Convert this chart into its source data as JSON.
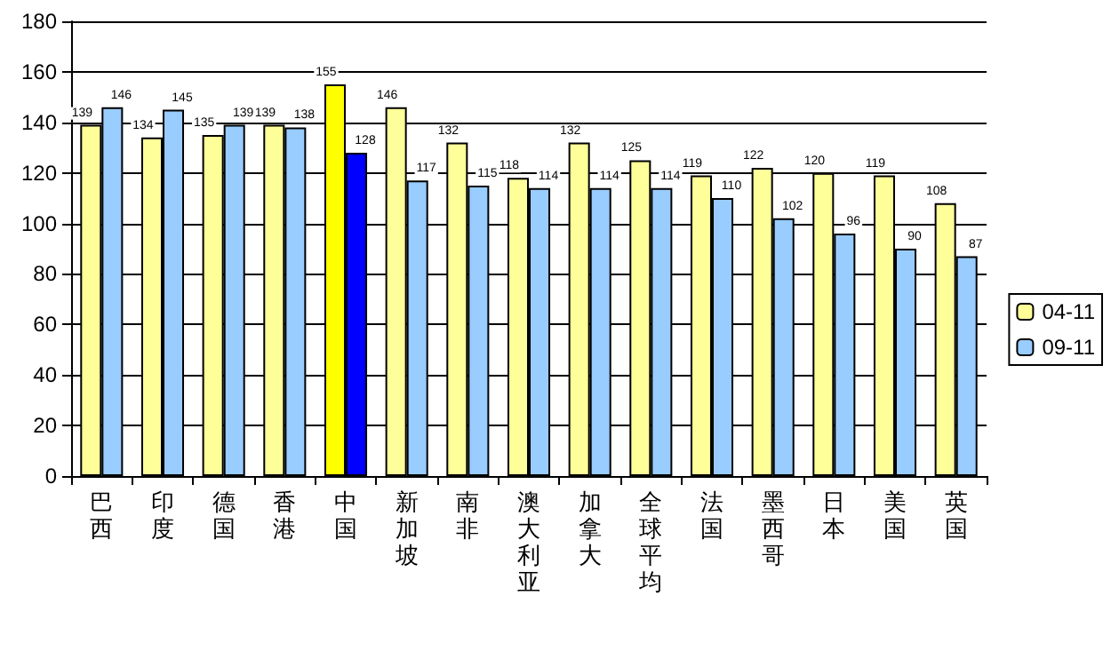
{
  "chart_data": {
    "type": "bar",
    "categories": [
      "巴西",
      "印度",
      "德国",
      "香港",
      "中国",
      "新加坡",
      "南非",
      "澳大利亚",
      "加拿大",
      "全球平均",
      "法国",
      "墨西哥",
      "日本",
      "美国",
      "英国"
    ],
    "series": [
      {
        "name": "04-11",
        "color": "#ffff99",
        "colors": [
          "#ffff99",
          "#ffff99",
          "#ffff99",
          "#ffff99",
          "#ffff00",
          "#ffff99",
          "#ffff99",
          "#ffff99",
          "#ffff99",
          "#ffff99",
          "#ffff99",
          "#ffff99",
          "#ffff99",
          "#ffff99",
          "#ffff99"
        ],
        "values": [
          139,
          134,
          135,
          139,
          155,
          146,
          132,
          118,
          132,
          125,
          119,
          122,
          120,
          119,
          108
        ]
      },
      {
        "name": "09-11",
        "color": "#99ccff",
        "colors": [
          "#99ccff",
          "#99ccff",
          "#99ccff",
          "#99ccff",
          "#0000ff",
          "#99ccff",
          "#99ccff",
          "#99ccff",
          "#99ccff",
          "#99ccff",
          "#99ccff",
          "#99ccff",
          "#99ccff",
          "#99ccff",
          "#99ccff"
        ],
        "values": [
          146,
          145,
          139,
          138,
          128,
          117,
          115,
          114,
          114,
          114,
          110,
          102,
          96,
          90,
          87
        ]
      }
    ],
    "ylim": [
      0,
      180
    ],
    "yticks": [
      0,
      20,
      40,
      60,
      80,
      100,
      120,
      140,
      160,
      180
    ],
    "grid": "y",
    "legend": "right",
    "data_labels": true
  }
}
